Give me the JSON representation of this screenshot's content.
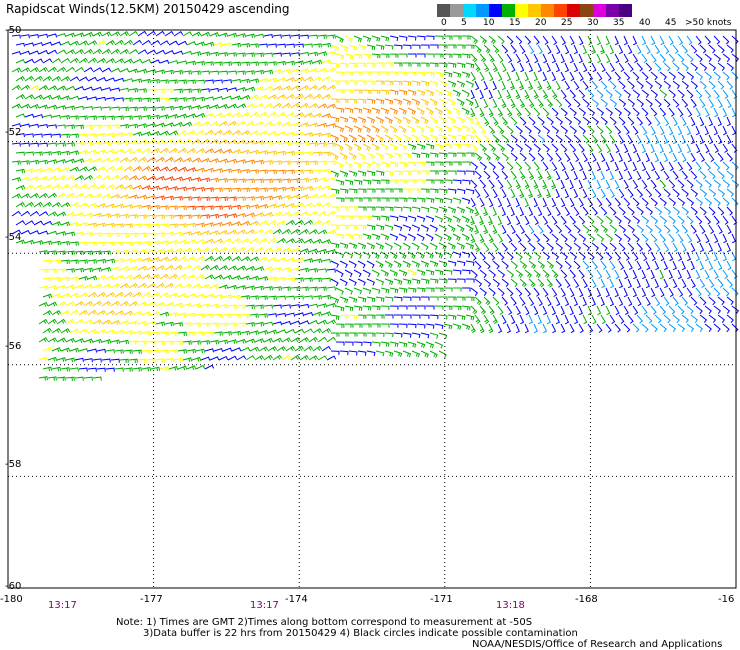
{
  "title": "Rapidscat Winds(12.5KM) 20150429 ascending",
  "legend": {
    "colors": [
      "#555555",
      "#9a9a9a",
      "#00d8ff",
      "#0099ff",
      "#0000ff",
      "#00b000",
      "#ffff00",
      "#ffc800",
      "#ff8800",
      "#ff4400",
      "#dd0000",
      "#8b4513",
      "#dd00dd",
      "#7a00aa",
      "#4b0082"
    ],
    "labels": [
      "0",
      "5",
      "10",
      "15",
      "20",
      "25",
      "30",
      "35",
      "40",
      "45",
      ">50 knots"
    ]
  },
  "lon_labels": [
    "-180",
    "-177",
    "-174",
    "-171",
    "-168",
    "-16"
  ],
  "lat_labels": [
    "-50",
    "-52",
    "-54",
    "-56",
    "-58",
    "-60"
  ],
  "time_labels": [
    "13:17",
    "13:17",
    "13:18"
  ],
  "notes": {
    "line1": "Note: 1) Times are GMT 2)Times along bottom correspond to measurement at -50S",
    "line2": "3)Data buffer is 22 hrs from 20150429 4) Black circles indicate possible contamination",
    "line3": "NOAA/NESDIS/Office of Research and Applications"
  },
  "map": {
    "lon_range": [
      -180,
      -165
    ],
    "lat_range": [
      -60,
      -50
    ],
    "speed_scale_knots": [
      0,
      50
    ],
    "grid_style": "dotted"
  }
}
